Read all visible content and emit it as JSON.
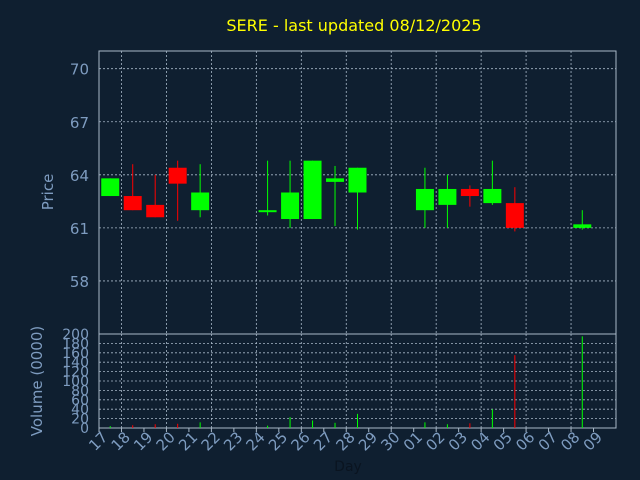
{
  "chart_data": {
    "type": "candlestick",
    "title": "SERE - last updated 08/12/2025",
    "xlabel": "Day",
    "x_tick_labels": [
      "17",
      "18",
      "19",
      "20",
      "21",
      "22",
      "23",
      "24",
      "25",
      "26",
      "27",
      "28",
      "29",
      "30",
      "01",
      "02",
      "03",
      "04",
      "05",
      "06",
      "07",
      "08",
      "09"
    ],
    "colors": {
      "up": "#00ff00",
      "down": "#ff0000",
      "background": "#0f1f30",
      "title": "#ffff00",
      "axis_text": "#7e9cc0",
      "grid": "#a8b8c8"
    },
    "price_panel": {
      "ylabel": "Price",
      "ylim": [
        55,
        71
      ],
      "yticks": [
        58,
        61,
        64,
        67,
        70
      ]
    },
    "volume_panel": {
      "ylabel": "Volume (0000)",
      "ylim": [
        0,
        200
      ],
      "yticks": [
        0,
        20,
        40,
        60,
        80,
        100,
        120,
        140,
        160,
        180,
        200
      ]
    },
    "candles": [
      {
        "day": 17,
        "open": 62.8,
        "high": 63.8,
        "low": 62.8,
        "close": 63.8,
        "volume": 4
      },
      {
        "day": 18,
        "open": 62.8,
        "high": 64.6,
        "low": 62.0,
        "close": 62.0,
        "volume": 6
      },
      {
        "day": 19,
        "open": 62.3,
        "high": 64.0,
        "low": 61.6,
        "close": 61.6,
        "volume": 8
      },
      {
        "day": 20,
        "open": 64.4,
        "high": 64.8,
        "low": 61.4,
        "close": 63.5,
        "volume": 9
      },
      {
        "day": 21,
        "open": 62.0,
        "high": 64.6,
        "low": 61.6,
        "close": 63.0,
        "volume": 12
      },
      {
        "day": 24,
        "open": 61.9,
        "high": 64.8,
        "low": 61.7,
        "close": 62.0,
        "volume": 5
      },
      {
        "day": 25,
        "open": 61.5,
        "high": 64.8,
        "low": 61.0,
        "close": 63.0,
        "volume": 23
      },
      {
        "day": 26,
        "open": 61.5,
        "high": 64.8,
        "low": 61.5,
        "close": 64.8,
        "volume": 16
      },
      {
        "day": 27,
        "open": 63.6,
        "high": 64.5,
        "low": 61.1,
        "close": 63.8,
        "volume": 11
      },
      {
        "day": 28,
        "open": 63.0,
        "high": 64.4,
        "low": 60.9,
        "close": 64.4,
        "volume": 30
      },
      {
        "day": "01",
        "open": 62.0,
        "high": 64.4,
        "low": 61.0,
        "close": 63.2,
        "volume": 12
      },
      {
        "day": "02",
        "open": 62.3,
        "high": 64.0,
        "low": 61.0,
        "close": 63.2,
        "volume": 8
      },
      {
        "day": "03",
        "open": 63.2,
        "high": 63.4,
        "low": 62.2,
        "close": 62.8,
        "volume": 10
      },
      {
        "day": "04",
        "open": 62.4,
        "high": 64.8,
        "low": 62.3,
        "close": 63.2,
        "volume": 40
      },
      {
        "day": "05",
        "open": 62.4,
        "high": 63.3,
        "low": 60.8,
        "close": 61.0,
        "volume": 155
      },
      {
        "day": "08",
        "open": 61.0,
        "high": 62.0,
        "low": 60.9,
        "close": 61.2,
        "volume": 195
      }
    ],
    "candle_slots": [
      0,
      1,
      2,
      3,
      4,
      7,
      8,
      9,
      10,
      11,
      14,
      15,
      16,
      17,
      18,
      21
    ]
  }
}
